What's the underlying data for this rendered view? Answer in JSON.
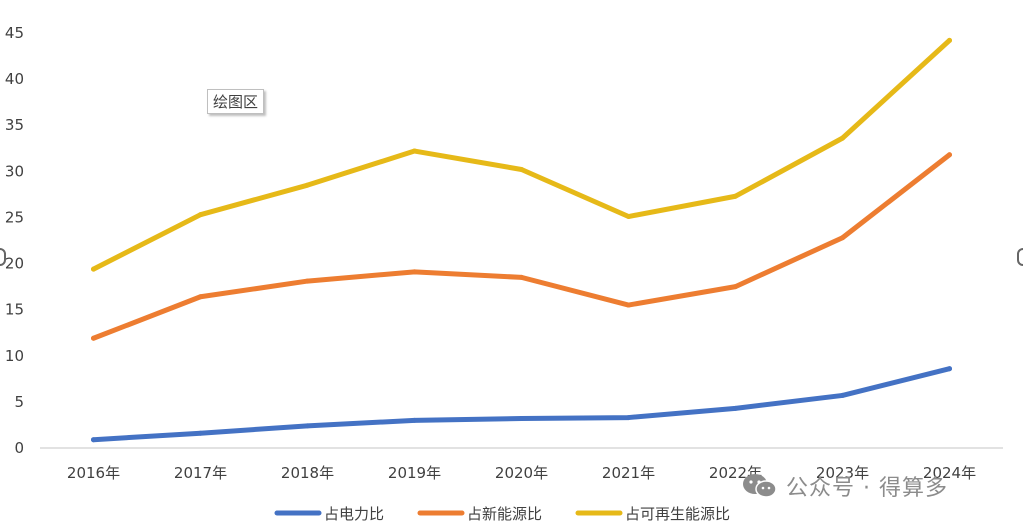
{
  "chart_data": {
    "type": "line",
    "categories": [
      "2016年",
      "2017年",
      "2018年",
      "2019年",
      "2020年",
      "2021年",
      "2022年",
      "2023年",
      "2024年"
    ],
    "ylim": [
      0,
      45
    ],
    "yticks": [
      0,
      5,
      10,
      15,
      20,
      25,
      30,
      35,
      40,
      45
    ],
    "grid": false,
    "legend_position": "bottom",
    "series": [
      {
        "name": "占电力比",
        "color": "#4472c4",
        "values": [
          0.9,
          1.6,
          2.4,
          3.0,
          3.2,
          3.3,
          4.3,
          5.7,
          8.6
        ]
      },
      {
        "name": "占新能源比",
        "color": "#ed7d31",
        "values": [
          11.9,
          16.4,
          18.1,
          19.1,
          18.5,
          15.5,
          17.5,
          22.8,
          31.8
        ]
      },
      {
        "name": "占可再生能源比",
        "color": "#e6b918",
        "values": [
          19.4,
          25.3,
          28.5,
          32.2,
          30.2,
          25.1,
          27.3,
          33.6,
          44.2
        ]
      }
    ]
  },
  "overlay": {
    "tooltip": "绘图区",
    "watermark_text": "公众号 · 得算多"
  }
}
